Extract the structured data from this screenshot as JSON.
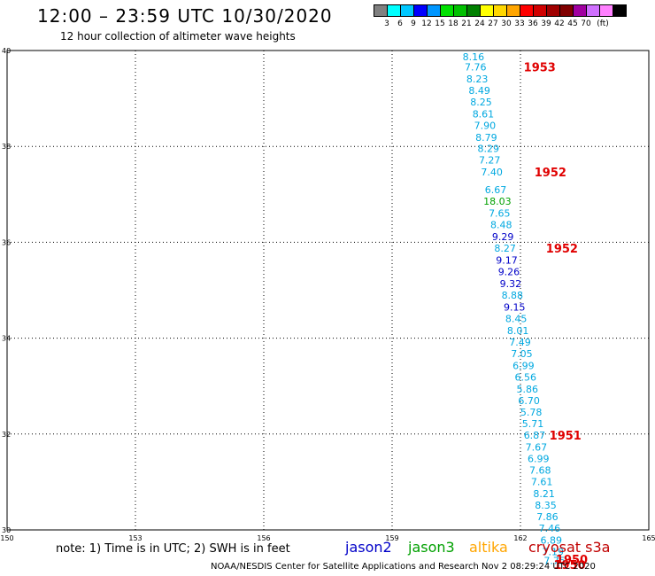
{
  "header": {
    "title": "12:00 – 23:59 UTC 10/30/2020",
    "subtitle": "12 hour collection of altimeter wave heights"
  },
  "colorbar": {
    "colors": [
      "#808080",
      "#00ffff",
      "#00c8ff",
      "#0000ff",
      "#0096ff",
      "#00e000",
      "#00c000",
      "#008000",
      "#ffff00",
      "#ffd700",
      "#ffa500",
      "#ff0000",
      "#d00000",
      "#a00000",
      "#800000",
      "#a000a0",
      "#d070ff",
      "#ff80ff",
      "#000000"
    ],
    "labels": [
      "3",
      "6",
      "9",
      "12",
      "15",
      "18",
      "21",
      "24",
      "27",
      "30",
      "33",
      "36",
      "39",
      "42",
      "45",
      "70",
      "(ft)"
    ]
  },
  "chart_data": {
    "type": "scatter",
    "title": "12:00 – 23:59 UTC 10/30/2020",
    "subtitle": "12 hour collection of altimeter wave heights",
    "xlabel": "",
    "ylabel": "",
    "xlim": [
      150,
      165
    ],
    "ylim": [
      30,
      40
    ],
    "x_ticks": [
      "150",
      "153",
      "156",
      "159",
      "162",
      "165"
    ],
    "y_ticks": [
      "30",
      "32",
      "34",
      "36",
      "38",
      "40"
    ],
    "grid": true,
    "points": [
      {
        "x": 160.9,
        "y": 39.87,
        "label": "8.16",
        "color": "#00a8e0"
      },
      {
        "x": 160.95,
        "y": 39.66,
        "label": "7.76",
        "color": "#00a8e0"
      },
      {
        "x": 160.99,
        "y": 39.41,
        "label": "8.23",
        "color": "#00a8e0"
      },
      {
        "x": 161.04,
        "y": 39.17,
        "label": "8.49",
        "color": "#00a8e0"
      },
      {
        "x": 161.08,
        "y": 38.93,
        "label": "8.25",
        "color": "#00a8e0"
      },
      {
        "x": 161.13,
        "y": 38.68,
        "label": "8.61",
        "color": "#00a8e0"
      },
      {
        "x": 161.17,
        "y": 38.44,
        "label": "7.90",
        "color": "#00a8e0"
      },
      {
        "x": 161.2,
        "y": 38.19,
        "label": "8.79",
        "color": "#00a8e0"
      },
      {
        "x": 161.25,
        "y": 37.96,
        "label": "8.29",
        "color": "#00a8e0"
      },
      {
        "x": 161.28,
        "y": 37.72,
        "label": "7.27",
        "color": "#00a8e0"
      },
      {
        "x": 161.33,
        "y": 37.47,
        "label": "7.40",
        "color": "#00a8e0"
      },
      {
        "x": 161.42,
        "y": 37.1,
        "label": "6.67",
        "color": "#00a8e0"
      },
      {
        "x": 161.46,
        "y": 36.86,
        "label": "18.03",
        "color": "#00a000"
      },
      {
        "x": 161.51,
        "y": 36.61,
        "label": "7.65",
        "color": "#00a8e0"
      },
      {
        "x": 161.55,
        "y": 36.37,
        "label": "8.48",
        "color": "#00a8e0"
      },
      {
        "x": 161.59,
        "y": 36.12,
        "label": "9.29",
        "color": "#0000c8"
      },
      {
        "x": 161.64,
        "y": 35.88,
        "label": "8.27",
        "color": "#00a8e0"
      },
      {
        "x": 161.68,
        "y": 35.63,
        "label": "9.17",
        "color": "#0000c8"
      },
      {
        "x": 161.73,
        "y": 35.39,
        "label": "9.26",
        "color": "#0000c8"
      },
      {
        "x": 161.77,
        "y": 35.14,
        "label": "9.32",
        "color": "#0000c8"
      },
      {
        "x": 161.81,
        "y": 34.9,
        "label": "8.88",
        "color": "#00a8e0"
      },
      {
        "x": 161.86,
        "y": 34.65,
        "label": "9.15",
        "color": "#0000c8"
      },
      {
        "x": 161.9,
        "y": 34.41,
        "label": "8.45",
        "color": "#00a8e0"
      },
      {
        "x": 161.94,
        "y": 34.16,
        "label": "8.01",
        "color": "#00a8e0"
      },
      {
        "x": 161.99,
        "y": 33.92,
        "label": "7.49",
        "color": "#00a8e0"
      },
      {
        "x": 162.03,
        "y": 33.68,
        "label": "7.05",
        "color": "#00a8e0"
      },
      {
        "x": 162.07,
        "y": 33.43,
        "label": "6.99",
        "color": "#00a8e0"
      },
      {
        "x": 162.12,
        "y": 33.19,
        "label": "6.56",
        "color": "#00a8e0"
      },
      {
        "x": 162.16,
        "y": 32.94,
        "label": "5.86",
        "color": "#00a8e0"
      },
      {
        "x": 162.2,
        "y": 32.7,
        "label": "6.70",
        "color": "#00a8e0"
      },
      {
        "x": 162.25,
        "y": 32.46,
        "label": "5.78",
        "color": "#00a8e0"
      },
      {
        "x": 162.29,
        "y": 32.22,
        "label": "5.71",
        "color": "#00a8e0"
      },
      {
        "x": 162.33,
        "y": 31.98,
        "label": "6.87",
        "color": "#00a8e0"
      },
      {
        "x": 162.37,
        "y": 31.73,
        "label": "7.67",
        "color": "#00a8e0"
      },
      {
        "x": 162.42,
        "y": 31.49,
        "label": "6.99",
        "color": "#00a8e0"
      },
      {
        "x": 162.46,
        "y": 31.25,
        "label": "7.68",
        "color": "#00a8e0"
      },
      {
        "x": 162.5,
        "y": 31.01,
        "label": "7.61",
        "color": "#00a8e0"
      },
      {
        "x": 162.55,
        "y": 30.76,
        "label": "8.21",
        "color": "#00a8e0"
      },
      {
        "x": 162.59,
        "y": 30.52,
        "label": "8.35",
        "color": "#00a8e0"
      },
      {
        "x": 162.63,
        "y": 30.28,
        "label": "7.86",
        "color": "#00a8e0"
      },
      {
        "x": 162.68,
        "y": 30.04,
        "label": "7.46",
        "color": "#00a8e0"
      },
      {
        "x": 162.72,
        "y": 29.79,
        "label": "6.89",
        "color": "#00a8e0"
      },
      {
        "x": 162.76,
        "y": 29.55,
        "label": "7.19",
        "color": "#00a8e0"
      },
      {
        "x": 162.8,
        "y": 29.36,
        "label": "7.75",
        "color": "#00a8e0"
      }
    ],
    "annotations": [
      {
        "x": 162.45,
        "y": 39.66,
        "text": "1953",
        "color": "#e00000"
      },
      {
        "x": 162.7,
        "y": 37.47,
        "text": "1952",
        "color": "#e00000"
      },
      {
        "x": 162.97,
        "y": 35.88,
        "text": "1952",
        "color": "#e00000"
      },
      {
        "x": 163.05,
        "y": 31.98,
        "text": "1951",
        "color": "#e00000"
      },
      {
        "x": 163.2,
        "y": 29.39,
        "text": "1950",
        "color": "#e00000"
      },
      {
        "x": 163.15,
        "y": 29.28,
        "text": "1950",
        "color": "#e00000"
      }
    ]
  },
  "note": "note:  1)  Time is in UTC;  2)  SWH is in feet",
  "satellites": [
    {
      "name": "jason2",
      "color": "#0000c8"
    },
    {
      "name": "jason3",
      "color": "#00a000"
    },
    {
      "name": "altika",
      "color": "#ffa500"
    },
    {
      "name": "cryosat s3a",
      "color": "#c00000"
    }
  ],
  "footer": "NOAA/NESDIS Center for Satellite Applications and Research    Nov  2 08:29:24 UTC 2020"
}
